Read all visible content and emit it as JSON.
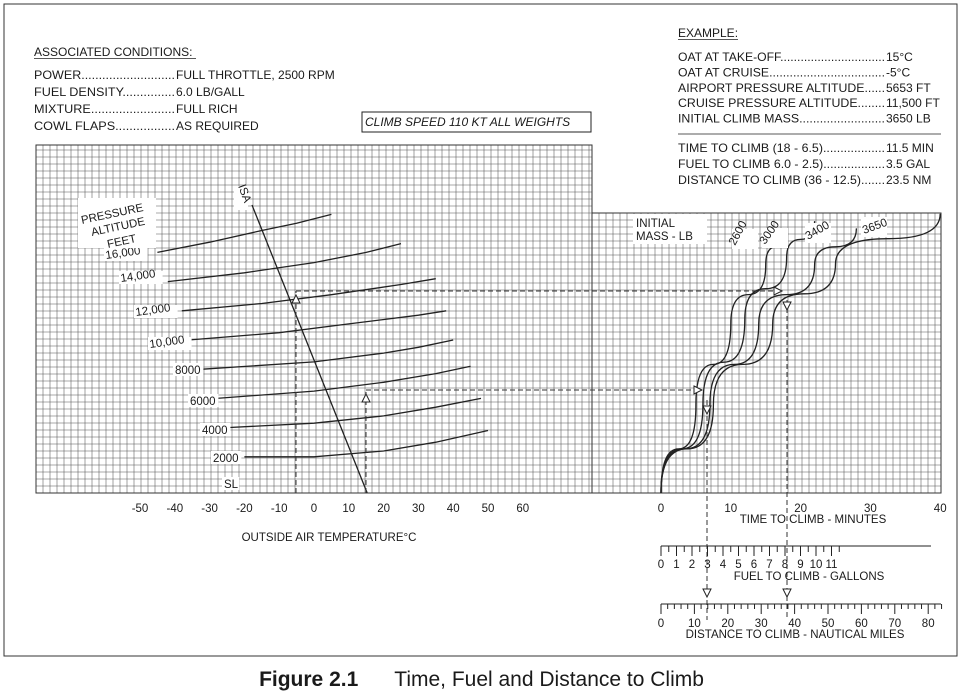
{
  "chart_data": {
    "type": "line",
    "associated_conditions": {
      "title": "ASSOCIATED CONDITIONS:",
      "lines": [
        {
          "label": "POWER",
          "dots": "...........................",
          "value": "FULL THROTTLE,  2500 RPM"
        },
        {
          "label": "FUEL DENSITY",
          "dots": "...............",
          "value": "6.0 LB/GALL"
        },
        {
          "label": "MIXTURE",
          "dots": "........................",
          "value": "FULL RICH"
        },
        {
          "label": "COWL FLAPS",
          "dots": ".................",
          "value": "AS REQUIRED"
        }
      ]
    },
    "climb_speed_box": "CLIMB SPEED  110 KT ALL WEIGHTS",
    "example": {
      "title": "EXAMPLE:",
      "lines": [
        {
          "label": "OAT AT TAKE-OFF",
          "dots": "...............................",
          "value": "15°C"
        },
        {
          "label": "OAT AT CRUISE",
          "dots": "..................................",
          "value": "-5°C"
        },
        {
          "label": "AIRPORT PRESSURE ALTITUDE",
          "dots": "......",
          "value": "5653 FT"
        },
        {
          "label": "CRUISE PRESSURE ALTITUDE",
          "dots": "........",
          "value": "11,500 FT"
        },
        {
          "label": "INITIAL CLIMB MASS",
          "dots": ".........................",
          "value": "3650 LB"
        }
      ],
      "results": [
        {
          "label": "TIME TO CLIMB (18 - 6.5)",
          "dots": "..................",
          "value": "11.5 MIN"
        },
        {
          "label": "FUEL TO CLIMB 6.0 - 2.5)",
          "dots": "..................",
          "value": "3.5 GAL"
        },
        {
          "label": "DISTANCE TO CLIMB (36 - 12.5)",
          "dots": ".......",
          "value": "23.5 NM"
        }
      ]
    },
    "left_panel": {
      "xlabel": "OUTSIDE AIR TEMPERATURE°C",
      "x_ticks": [
        -50,
        -40,
        -30,
        -20,
        -10,
        0,
        10,
        20,
        30,
        40,
        50,
        60
      ],
      "ylabel_lines": [
        "PRESSURE",
        "ALTITUDE",
        "FEET"
      ],
      "isa_label": "ISA",
      "isa_line": [
        {
          "oat": -20,
          "alt": 16000
        },
        {
          "oat": 15,
          "alt": 0
        }
      ],
      "altitude_lines": [
        {
          "label": "SL",
          "alt": 0,
          "curve": []
        },
        {
          "label": "2000",
          "alt": 2000,
          "curve": [
            [
              -20,
              2000
            ],
            [
              0,
              2000
            ],
            [
              20,
              2400
            ],
            [
              35,
              3000
            ],
            [
              50,
              3800
            ]
          ]
        },
        {
          "label": "4000",
          "alt": 4000,
          "curve": [
            [
              -25,
              4000
            ],
            [
              0,
              4300
            ],
            [
              20,
              4800
            ],
            [
              35,
              5400
            ],
            [
              48,
              6000
            ]
          ]
        },
        {
          "label": "6000",
          "alt": 6000,
          "curve": [
            [
              -28,
              6000
            ],
            [
              0,
              6500
            ],
            [
              20,
              7100
            ],
            [
              35,
              7700
            ],
            [
              45,
              8200
            ]
          ]
        },
        {
          "label": "8000",
          "alt": 8000,
          "curve": [
            [
              -32,
              8000
            ],
            [
              0,
              8500
            ],
            [
              20,
              9100
            ],
            [
              30,
              9500
            ],
            [
              40,
              10000
            ]
          ]
        },
        {
          "label": "10,000",
          "alt": 10000,
          "curve": [
            [
              -36,
              10000
            ],
            [
              -10,
              10500
            ],
            [
              10,
              11100
            ],
            [
              30,
              11700
            ],
            [
              38,
              12000
            ]
          ]
        },
        {
          "label": "12,000",
          "alt": 12000,
          "curve": [
            [
              -38,
              12000
            ],
            [
              -15,
              12500
            ],
            [
              5,
              13100
            ],
            [
              25,
              13800
            ],
            [
              35,
              14200
            ]
          ]
        },
        {
          "label": "14,000",
          "alt": 14000,
          "curve": [
            [
              -42,
              14000
            ],
            [
              -20,
              14600
            ],
            [
              0,
              15300
            ],
            [
              15,
              16000
            ],
            [
              25,
              16600
            ]
          ]
        },
        {
          "label": "16,000",
          "alt": 16000,
          "curve": [
            [
              -45,
              16000
            ],
            [
              -30,
              16700
            ],
            [
              -15,
              17500
            ],
            [
              -5,
              18000
            ],
            [
              5,
              18600
            ]
          ]
        }
      ]
    },
    "right_panel": {
      "xlabel": "TIME  TO CLIMB - MINUTES",
      "x_ticks": [
        0,
        10,
        20,
        30,
        40
      ],
      "xlim": [
        0,
        40
      ],
      "legend_lines": [
        "INITIAL",
        "MASS - LB"
      ],
      "mass_series": [
        {
          "name": "2600",
          "points": [
            [
              0,
              0
            ],
            [
              5,
              6000
            ],
            [
              10,
              11500
            ],
            [
              15,
              15500
            ],
            [
              18,
              18000
            ]
          ]
        },
        {
          "name": "3000",
          "points": [
            [
              0,
              0
            ],
            [
              6,
              6000
            ],
            [
              12,
              11800
            ],
            [
              18,
              16000
            ],
            [
              22,
              18500
            ]
          ]
        },
        {
          "name": "3400",
          "points": [
            [
              0,
              0
            ],
            [
              7,
              6000
            ],
            [
              14,
              11500
            ],
            [
              22,
              15500
            ],
            [
              28,
              18000
            ]
          ]
        },
        {
          "name": "3650",
          "points": [
            [
              0,
              0
            ],
            [
              7.5,
              6000
            ],
            [
              16,
              11500
            ],
            [
              25,
              15600
            ],
            [
              40,
              19000
            ]
          ]
        }
      ]
    },
    "fuel_scale": {
      "xlabel": "FUEL TO CLIMB - GALLONS",
      "ticks": [
        0,
        1,
        2,
        3,
        4,
        5,
        6,
        7,
        8,
        9,
        10,
        11
      ]
    },
    "distance_scale": {
      "xlabel": "DISTANCE TO CLIMB - NAUTICAL MILES",
      "ticks": [
        0,
        10,
        20,
        30,
        40,
        50,
        60,
        70,
        80
      ]
    },
    "example_path": {
      "takeoff_oat": 15,
      "cruise_oat": -5,
      "airport_alt": 5653,
      "cruise_alt": 11500,
      "time_low": 6.5,
      "time_high": 18,
      "fuel_low": 2.5,
      "fuel_high": 6.0,
      "dist_low": 12.5,
      "dist_high": 36
    }
  },
  "caption": {
    "number": "Figure 2.1",
    "text": "Time, Fuel and Distance to Climb"
  }
}
